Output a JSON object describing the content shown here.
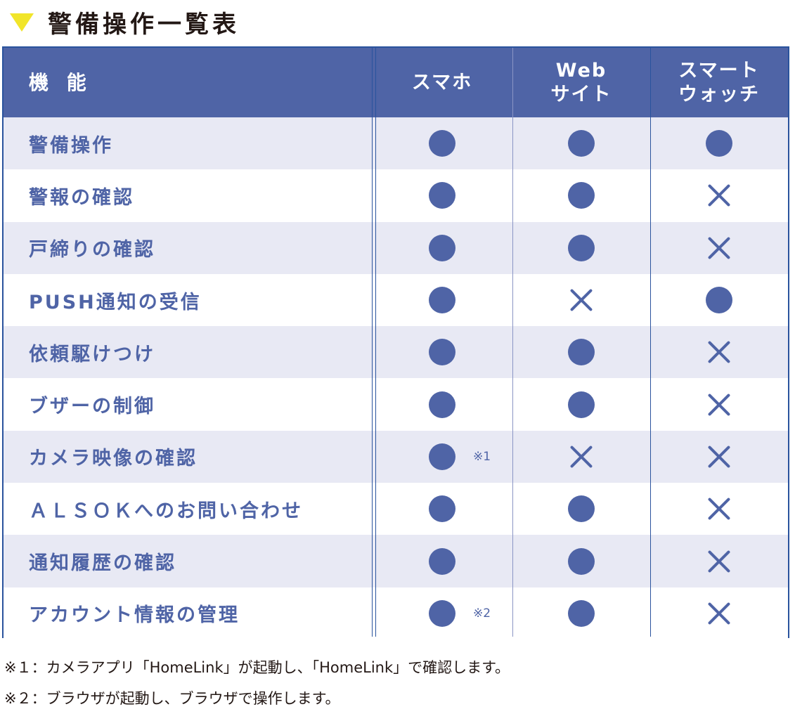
{
  "title": "警備操作一覧表",
  "table": {
    "headers": [
      "機 能",
      "スマホ",
      "Web\nサイト",
      "スマート\nウォッチ"
    ],
    "rows": [
      {
        "feature": "警備操作",
        "smartphone": "●",
        "web": "●",
        "watch": "●",
        "note": ""
      },
      {
        "feature": "警報の確認",
        "smartphone": "●",
        "web": "●",
        "watch": "×",
        "note": ""
      },
      {
        "feature": "戸締りの確認",
        "smartphone": "●",
        "web": "●",
        "watch": "×",
        "note": ""
      },
      {
        "feature": "PUSH通知の受信",
        "smartphone": "●",
        "web": "×",
        "watch": "●",
        "note": ""
      },
      {
        "feature": "依頼駆けつけ",
        "smartphone": "●",
        "web": "●",
        "watch": "×",
        "note": ""
      },
      {
        "feature": "ブザーの制御",
        "smartphone": "●",
        "web": "●",
        "watch": "×",
        "note": ""
      },
      {
        "feature": "カメラ映像の確認",
        "smartphone": "●",
        "web": "×",
        "watch": "×",
        "note": "※1"
      },
      {
        "feature": "ＡＬＳＯＫへのお問い合わせ",
        "smartphone": "●",
        "web": "●",
        "watch": "×",
        "note": ""
      },
      {
        "feature": "通知履歴の確認",
        "smartphone": "●",
        "web": "●",
        "watch": "×",
        "note": ""
      },
      {
        "feature": "アカウント情報の管理",
        "smartphone": "●",
        "web": "●",
        "watch": "×",
        "note": "※2"
      }
    ]
  },
  "footnotes": [
    "※１：カメラアプリ「HomeLink」が起動し、「HomeLink」で確認します。",
    "※２：ブラウザが起動し、ブラウザで操作します。"
  ],
  "colors": {
    "accent": "#4f64a6",
    "border": "#2a539d",
    "stripe": "#e8e9f4",
    "triangle": "#f1e52a"
  }
}
